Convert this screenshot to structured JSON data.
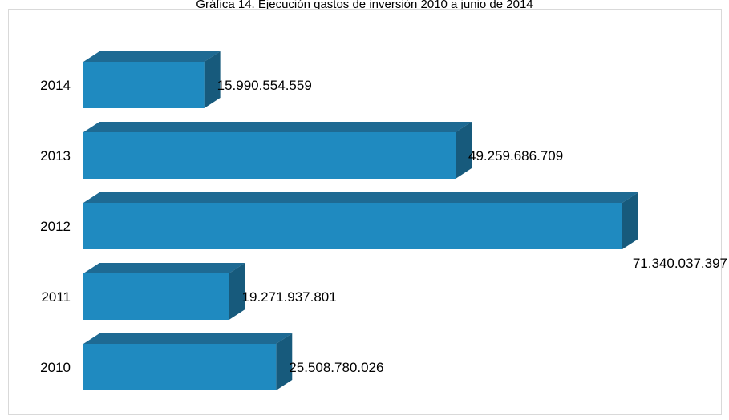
{
  "chart_data": {
    "type": "bar",
    "orientation": "horizontal",
    "style": "3d",
    "title": "Gráfica 14. Ejecución gastos de inversión 2010 a junio de 2014",
    "categories": [
      "2014",
      "2013",
      "2012",
      "2011",
      "2010"
    ],
    "values": [
      15990554559,
      49259686709,
      71340037397,
      19271937801,
      25508780026
    ],
    "value_labels": [
      "15.990.554.559",
      "49.259.686.709",
      "71.340.037.397",
      "19.271.937.801",
      "25.508.780.026"
    ],
    "xlim": [
      0,
      71340037397
    ],
    "grid": false,
    "legend": "none",
    "colors": {
      "front": "#1f8ac0",
      "top": "#1e6a93",
      "side": "#175a7c",
      "frame": "#d9d9d9"
    }
  }
}
